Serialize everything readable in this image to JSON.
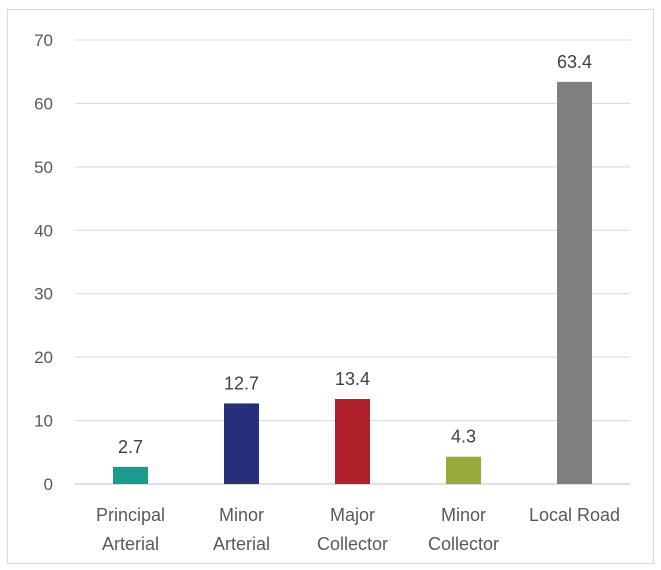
{
  "chart_data": {
    "type": "bar",
    "title": "",
    "xlabel": "",
    "ylabel": "",
    "categories": [
      [
        "Principal",
        "Arterial"
      ],
      [
        "Minor",
        "Arterial"
      ],
      [
        "Major",
        "Collector"
      ],
      [
        "Minor",
        "Collector"
      ],
      [
        "Local Road"
      ]
    ],
    "values": [
      2.7,
      12.7,
      13.4,
      4.3,
      63.4
    ],
    "value_labels": [
      "2.7",
      "12.7",
      "13.4",
      "4.3",
      "63.4"
    ],
    "colors": [
      "#1a9b8c",
      "#26307a",
      "#b0202a",
      "#98a83a",
      "#7f7f7f"
    ],
    "ylim": [
      0,
      70
    ],
    "yticks": [
      0,
      10,
      20,
      30,
      40,
      50,
      60,
      70
    ],
    "grid": true,
    "legend": "none"
  }
}
